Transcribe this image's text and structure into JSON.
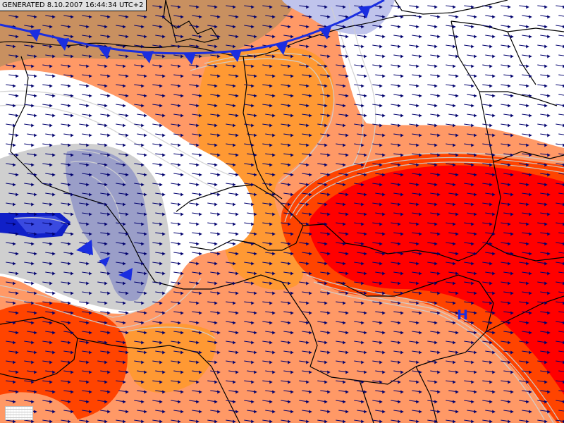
{
  "header": {
    "generated_label": "GENERATED 8.10.2007 16:44:34 UTC+2"
  },
  "map": {
    "field": "temperature anomaly (colour) with wind vectors",
    "fill_colors": {
      "deep_red": "#ff0000",
      "red_orange": "#ff4400",
      "orange": "#ff9933",
      "salmon": "#ff9966",
      "light_brown": "#c89060",
      "white": "#ffffff",
      "light_gray": "#cfcfcf",
      "steel": "#9a9ec8",
      "lavender": "#c0c4ec",
      "blue": "#1020c8"
    },
    "front_color": "#1a2ee0",
    "border_color": "#000000",
    "isoline_color": "#d0d0d0",
    "arrow_color": "#00006e",
    "front_type": "cold",
    "symbol_h": "H",
    "symbol_h_color": "#1a2ee0",
    "wind_direction": "westerly",
    "legend_icon": "scale-legend-icon"
  }
}
